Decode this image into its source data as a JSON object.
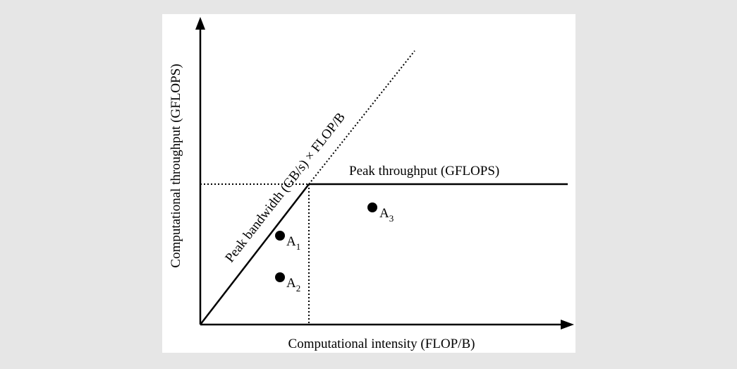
{
  "axes": {
    "x_label": "Computational intensity (FLOP/B)",
    "y_label": "Computational throughput (GFLOPS)"
  },
  "annotations": {
    "peak_throughput": "Peak throughput (GFLOPS)",
    "peak_bandwidth": "Peak bandwidth (GB/s) × FLOP/B"
  },
  "points": [
    {
      "label": "A",
      "sub": "1"
    },
    {
      "label": "A",
      "sub": "2"
    },
    {
      "label": "A",
      "sub": "3"
    }
  ],
  "colors": {
    "background": "#e6e6e6",
    "panel": "#ffffff",
    "ink": "#000000"
  }
}
